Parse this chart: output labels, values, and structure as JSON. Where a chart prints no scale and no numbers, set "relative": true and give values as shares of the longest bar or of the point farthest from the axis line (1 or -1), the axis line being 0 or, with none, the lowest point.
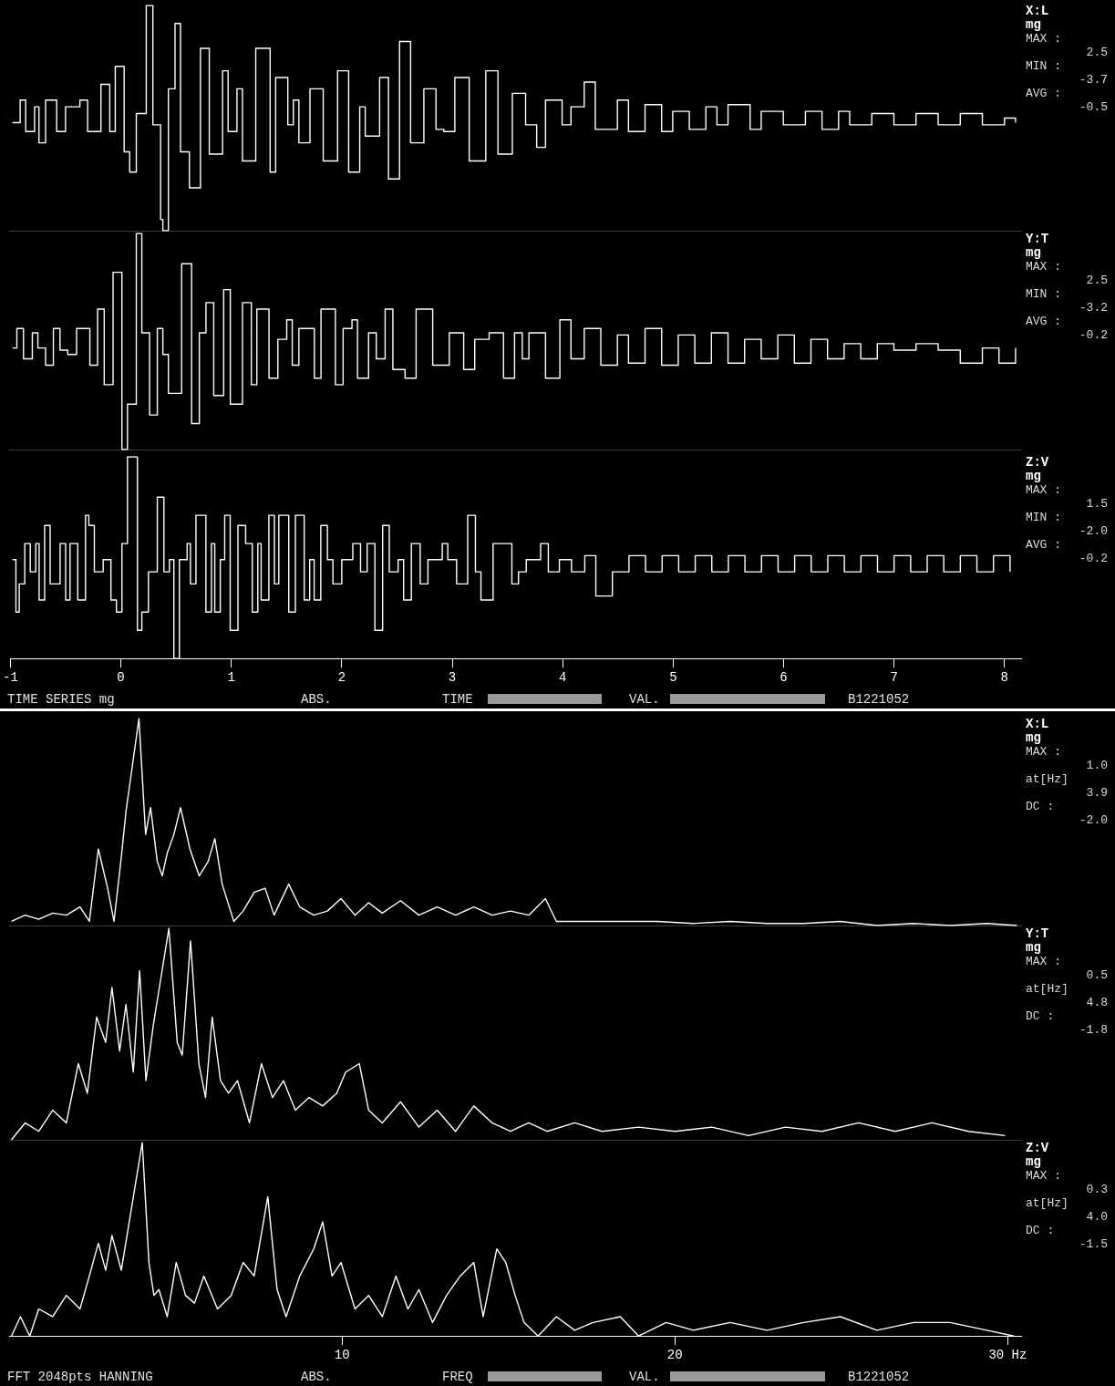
{
  "chart_data": [
    {
      "type": "step",
      "title": "X:L",
      "ylabel": "mg",
      "annotations": [
        "MAX :",
        "2.5",
        "MIN :",
        "-3.7",
        "AVG :",
        "-0.5"
      ],
      "color": "#ffffff",
      "relative": true,
      "xlim": [
        -1,
        8.15
      ],
      "tick_labels": false,
      "x": [
        -0.97,
        -0.9,
        -0.85,
        -0.77,
        -0.73,
        -0.67,
        -0.57,
        -0.49,
        -0.36,
        -0.29,
        -0.17,
        -0.09,
        -0.04,
        0.04,
        0.09,
        0.15,
        0.24,
        0.3,
        0.37,
        0.39,
        0.44,
        0.5,
        0.55,
        0.63,
        0.73,
        0.81,
        0.93,
        0.98,
        1.06,
        1.11,
        1.23,
        1.36,
        1.41,
        1.52,
        1.57,
        1.62,
        1.72,
        1.84,
        1.97,
        2.07,
        2.17,
        2.22,
        2.35,
        2.43,
        2.53,
        2.63,
        2.75,
        2.86,
        2.93,
        3.03,
        3.16,
        3.31,
        3.42,
        3.55,
        3.67,
        3.77,
        3.85,
        4.0,
        4.08,
        4.2,
        4.3,
        4.5,
        4.6,
        4.75,
        4.9,
        5.0,
        5.15,
        5.3,
        5.4,
        5.5,
        5.7,
        5.8,
        6.0,
        6.2,
        6.35,
        6.5,
        6.6,
        6.8,
        7.0,
        7.2,
        7.4,
        7.6,
        7.8,
        8.0,
        8.1
      ],
      "values": [
        0.48,
        0.58,
        0.44,
        0.55,
        0.39,
        0.58,
        0.44,
        0.55,
        0.58,
        0.44,
        0.65,
        0.44,
        0.73,
        0.35,
        0.26,
        0.52,
        1,
        0.47,
        0.05,
        0,
        0.63,
        0.92,
        0.35,
        0.19,
        0.81,
        0.34,
        0.71,
        0.44,
        0.63,
        0.31,
        0.81,
        0.26,
        0.68,
        0.47,
        0.58,
        0.39,
        0.63,
        0.31,
        0.71,
        0.26,
        0.55,
        0.42,
        0.68,
        0.23,
        0.84,
        0.39,
        0.63,
        0.45,
        0.44,
        0.68,
        0.31,
        0.71,
        0.34,
        0.61,
        0.47,
        0.37,
        0.58,
        0.47,
        0.55,
        0.66,
        0.45,
        0.58,
        0.44,
        0.56,
        0.44,
        0.53,
        0.45,
        0.55,
        0.47,
        0.56,
        0.45,
        0.53,
        0.47,
        0.53,
        0.45,
        0.53,
        0.47,
        0.52,
        0.47,
        0.52,
        0.47,
        0.52,
        0.47,
        0.5,
        0.48
      ]
    },
    {
      "type": "step",
      "title": "Y:T",
      "ylabel": "mg",
      "annotations": [
        "MAX :",
        "2.5",
        "MIN :",
        "-3.2",
        "AVG :",
        "-0.2"
      ],
      "color": "#ffffff",
      "relative": true,
      "xlim": [
        -1,
        8.15
      ],
      "tick_labels": false,
      "x": [
        -0.97,
        -0.93,
        -0.87,
        -0.79,
        -0.74,
        -0.67,
        -0.6,
        -0.54,
        -0.47,
        -0.39,
        -0.27,
        -0.2,
        -0.14,
        -0.06,
        0.02,
        0.07,
        0.15,
        0.2,
        0.27,
        0.34,
        0.39,
        0.44,
        0.56,
        0.65,
        0.72,
        0.78,
        0.85,
        0.94,
        1.0,
        1.11,
        1.19,
        1.24,
        1.35,
        1.43,
        1.51,
        1.56,
        1.62,
        1.76,
        1.82,
        1.95,
        2.02,
        2.1,
        2.15,
        2.25,
        2.32,
        2.4,
        2.47,
        2.58,
        2.68,
        2.83,
        2.98,
        3.11,
        3.21,
        3.34,
        3.47,
        3.57,
        3.64,
        3.7,
        3.85,
        3.98,
        4.08,
        4.2,
        4.35,
        4.5,
        4.6,
        4.75,
        4.9,
        5.05,
        5.2,
        5.35,
        5.5,
        5.65,
        5.8,
        5.95,
        6.1,
        6.25,
        6.4,
        6.55,
        6.7,
        6.85,
        7.0,
        7.2,
        7.4,
        7.6,
        7.8,
        7.95,
        8.1
      ],
      "values": [
        0.47,
        0.56,
        0.42,
        0.54,
        0.47,
        0.39,
        0.56,
        0.46,
        0.44,
        0.56,
        0.39,
        0.65,
        0.3,
        0.82,
        0,
        0.21,
        1,
        0.54,
        0.16,
        0.56,
        0.44,
        0.26,
        0.86,
        0.12,
        0.54,
        0.68,
        0.25,
        0.74,
        0.21,
        0.68,
        0.3,
        0.65,
        0.33,
        0.51,
        0.6,
        0.39,
        0.56,
        0.33,
        0.65,
        0.3,
        0.56,
        0.6,
        0.33,
        0.54,
        0.42,
        0.65,
        0.37,
        0.33,
        0.65,
        0.39,
        0.54,
        0.37,
        0.51,
        0.54,
        0.33,
        0.54,
        0.42,
        0.54,
        0.33,
        0.6,
        0.42,
        0.56,
        0.39,
        0.53,
        0.4,
        0.56,
        0.39,
        0.53,
        0.4,
        0.54,
        0.4,
        0.51,
        0.42,
        0.53,
        0.4,
        0.51,
        0.42,
        0.49,
        0.42,
        0.49,
        0.46,
        0.49,
        0.46,
        0.4,
        0.47,
        0.4,
        0.47
      ]
    },
    {
      "type": "step",
      "title": "Z:V",
      "ylabel": "mg",
      "annotations": [
        "MAX :",
        "1.5",
        "MIN :",
        "-2.0",
        "AVG :",
        "-0.2"
      ],
      "color": "#ffffff",
      "relative": true,
      "xlim": [
        -1,
        8.15
      ],
      "tick_labels": "x",
      "xticks": [
        -1,
        0,
        1,
        2,
        3,
        4,
        5,
        6,
        7,
        8
      ],
      "x": [
        -0.98,
        -0.95,
        -0.92,
        -0.87,
        -0.82,
        -0.77,
        -0.74,
        -0.69,
        -0.64,
        -0.55,
        -0.5,
        -0.46,
        -0.39,
        -0.32,
        -0.29,
        -0.24,
        -0.16,
        -0.09,
        -0.04,
        0.01,
        0.06,
        0.15,
        0.19,
        0.25,
        0.33,
        0.39,
        0.44,
        0.48,
        0.53,
        0.6,
        0.63,
        0.68,
        0.77,
        0.82,
        0.85,
        0.9,
        0.94,
        0.99,
        1.06,
        1.13,
        1.19,
        1.24,
        1.27,
        1.34,
        1.39,
        1.43,
        1.52,
        1.58,
        1.66,
        1.71,
        1.75,
        1.81,
        1.87,
        1.92,
        2.0,
        2.1,
        2.17,
        2.23,
        2.3,
        2.37,
        2.43,
        2.51,
        2.56,
        2.63,
        2.71,
        2.78,
        2.91,
        2.96,
        3.04,
        3.14,
        3.21,
        3.26,
        3.37,
        3.47,
        3.54,
        3.6,
        3.67,
        3.8,
        3.87,
        3.97,
        4.08,
        4.2,
        4.3,
        4.45,
        4.6,
        4.75,
        4.9,
        5.05,
        5.2,
        5.35,
        5.5,
        5.65,
        5.8,
        5.95,
        6.1,
        6.25,
        6.4,
        6.55,
        6.7,
        6.85,
        7.0,
        7.15,
        7.3,
        7.45,
        7.6,
        7.75,
        7.9,
        8.05
      ],
      "values": [
        0.49,
        0.23,
        0.37,
        0.57,
        0.43,
        0.57,
        0.29,
        0.66,
        0.37,
        0.57,
        0.29,
        0.57,
        0.29,
        0.71,
        0.66,
        0.43,
        0.49,
        0.29,
        0.23,
        0.57,
        1,
        0.14,
        0.23,
        0.43,
        0.8,
        0.43,
        0.49,
        0,
        0.49,
        0.57,
        0.37,
        0.71,
        0.23,
        0.57,
        0.23,
        0.49,
        0.71,
        0.14,
        0.66,
        0.57,
        0.23,
        0.57,
        0.29,
        0.71,
        0.37,
        0.71,
        0.23,
        0.71,
        0.29,
        0.49,
        0.29,
        0.66,
        0.49,
        0.37,
        0.49,
        0.57,
        0.43,
        0.57,
        0.14,
        0.66,
        0.43,
        0.49,
        0.29,
        0.57,
        0.37,
        0.49,
        0.57,
        0.49,
        0.37,
        0.71,
        0.43,
        0.29,
        0.57,
        0.57,
        0.37,
        0.43,
        0.49,
        0.57,
        0.43,
        0.49,
        0.43,
        0.51,
        0.31,
        0.43,
        0.51,
        0.43,
        0.51,
        0.43,
        0.51,
        0.43,
        0.51,
        0.43,
        0.51,
        0.43,
        0.51,
        0.43,
        0.51,
        0.43,
        0.51,
        0.43,
        0.51,
        0.43,
        0.51,
        0.43,
        0.51,
        0.43,
        0.51,
        0.43
      ]
    },
    {
      "type": "other",
      "annotations": [
        "TIME SERIES mg",
        "ABS.",
        "TIME",
        "VAL.",
        "B1221052"
      ]
    },
    {
      "type": "line",
      "title": "X:L",
      "ylabel": "mg",
      "annotations": [
        "MAX :",
        "1.0",
        "at[Hz]",
        "3.9",
        "DC :",
        "-2.0"
      ],
      "color": "#ffffff",
      "relative": true,
      "xlim": [
        0,
        30.4
      ],
      "tick_labels": false,
      "x": [
        0.07,
        0.48,
        0.89,
        1.31,
        1.72,
        2.13,
        2.41,
        2.68,
        2.96,
        3.15,
        3.37,
        3.51,
        3.9,
        4.1,
        4.25,
        4.45,
        4.6,
        4.75,
        4.95,
        5.15,
        5.43,
        5.71,
        5.98,
        6.18,
        6.4,
        6.75,
        7.03,
        7.36,
        7.69,
        7.96,
        8.4,
        8.73,
        9.15,
        9.56,
        9.97,
        10.39,
        10.8,
        11.21,
        11.76,
        12.31,
        12.86,
        13.41,
        13.96,
        14.51,
        15.06,
        15.61,
        16.11,
        16.44,
        17.27,
        18.36,
        19.46,
        20.56,
        21.66,
        22.77,
        23.87,
        24.97,
        26.07,
        27.17,
        28.27,
        29.37,
        30.28
      ],
      "values": [
        0.02,
        0.05,
        0.03,
        0.06,
        0.05,
        0.09,
        0.02,
        0.37,
        0.18,
        0.02,
        0.33,
        0.55,
        1,
        0.44,
        0.57,
        0.31,
        0.24,
        0.35,
        0.44,
        0.57,
        0.37,
        0.24,
        0.31,
        0.42,
        0.2,
        0.02,
        0.07,
        0.16,
        0.18,
        0.05,
        0.2,
        0.09,
        0.05,
        0.07,
        0.13,
        0.05,
        0.11,
        0.06,
        0.12,
        0.05,
        0.09,
        0.05,
        0.09,
        0.05,
        0.07,
        0.05,
        0.13,
        0.02,
        0.02,
        0.02,
        0.02,
        0.01,
        0.02,
        0.01,
        0.01,
        0.02,
        0,
        0.01,
        0,
        0.01,
        0
      ]
    },
    {
      "type": "line",
      "title": "Y:T",
      "ylabel": "mg",
      "annotations": [
        "MAX :",
        "0.5",
        "at[Hz]",
        "4.8",
        "DC :",
        "-1.8"
      ],
      "color": "#ffffff",
      "relative": true,
      "xlim": [
        0,
        30.4
      ],
      "tick_labels": false,
      "x": [
        0.07,
        0.48,
        0.89,
        1.31,
        1.72,
        2.08,
        2.35,
        2.63,
        2.9,
        3.09,
        3.32,
        3.51,
        3.73,
        3.92,
        4.11,
        4.33,
        4.8,
        5.05,
        5.2,
        5.45,
        5.7,
        5.9,
        6.1,
        6.35,
        6.59,
        6.86,
        7.22,
        7.58,
        7.91,
        8.24,
        8.6,
        9.01,
        9.42,
        9.84,
        10.11,
        10.52,
        10.8,
        11.21,
        11.76,
        12.31,
        12.86,
        13.41,
        13.96,
        14.51,
        15.06,
        15.61,
        16.16,
        16.99,
        17.81,
        18.91,
        20.01,
        21.11,
        22.21,
        23.32,
        24.42,
        25.52,
        26.62,
        27.72,
        28.82,
        29.92
      ],
      "values": [
        0,
        0.08,
        0.04,
        0.14,
        0.08,
        0.36,
        0.22,
        0.58,
        0.46,
        0.72,
        0.42,
        0.64,
        0.32,
        0.8,
        0.28,
        0.54,
        1,
        0.46,
        0.4,
        0.94,
        0.36,
        0.2,
        0.58,
        0.28,
        0.22,
        0.28,
        0.08,
        0.36,
        0.2,
        0.28,
        0.14,
        0.2,
        0.16,
        0.22,
        0.32,
        0.36,
        0.14,
        0.08,
        0.18,
        0.06,
        0.14,
        0.04,
        0.16,
        0.08,
        0.04,
        0.08,
        0.04,
        0.08,
        0.04,
        0.06,
        0.04,
        0.06,
        0.02,
        0.06,
        0.04,
        0.08,
        0.04,
        0.08,
        0.04,
        0.02
      ]
    },
    {
      "type": "line",
      "title": "Z:V",
      "ylabel": "mg",
      "annotations": [
        "MAX :",
        "0.3",
        "at[Hz]",
        "4.0",
        "DC :",
        "-1.5"
      ],
      "color": "#ffffff",
      "relative": true,
      "xlim": [
        0,
        30.4
      ],
      "tick_labels": "x",
      "xticks": [
        10,
        20,
        {
          "value": 30,
          "label": "30 Hz"
        }
      ],
      "x": [
        0.07,
        0.34,
        0.62,
        0.89,
        1.31,
        1.72,
        2.13,
        2.41,
        2.68,
        2.9,
        3.09,
        3.37,
        4.0,
        4.2,
        4.35,
        4.5,
        4.75,
        5.02,
        5.3,
        5.57,
        5.85,
        6.26,
        6.67,
        7.03,
        7.36,
        7.77,
        8.05,
        8.32,
        8.73,
        9.15,
        9.42,
        9.7,
        9.97,
        10.39,
        10.8,
        11.21,
        11.62,
        11.98,
        12.31,
        12.72,
        13.14,
        13.55,
        13.96,
        14.24,
        14.65,
        14.92,
        15.2,
        15.47,
        15.89,
        16.44,
        16.99,
        17.54,
        18.36,
        18.91,
        19.74,
        20.56,
        21.66,
        22.77,
        23.87,
        24.97,
        26.07,
        27.17,
        28.27,
        29.37,
        30.19
      ],
      "values": [
        0,
        0.1,
        0,
        0.14,
        0.1,
        0.21,
        0.14,
        0.31,
        0.48,
        0.34,
        0.52,
        0.34,
        1,
        0.38,
        0.21,
        0.24,
        0.1,
        0.38,
        0.21,
        0.17,
        0.31,
        0.14,
        0.21,
        0.38,
        0.31,
        0.72,
        0.24,
        0.1,
        0.31,
        0.45,
        0.59,
        0.31,
        0.38,
        0.14,
        0.21,
        0.1,
        0.31,
        0.14,
        0.24,
        0.07,
        0.21,
        0.31,
        0.38,
        0.1,
        0.45,
        0.38,
        0.21,
        0.07,
        0,
        0.1,
        0.03,
        0.07,
        0.1,
        0,
        0.07,
        0.03,
        0.07,
        0.03,
        0.07,
        0.1,
        0.03,
        0.07,
        0.07,
        0.03,
        0
      ]
    },
    {
      "type": "other",
      "annotations": [
        "FFT 2048pts HANNING",
        "ABS.",
        "FREQ",
        "VAL.",
        "B1221052"
      ]
    }
  ]
}
